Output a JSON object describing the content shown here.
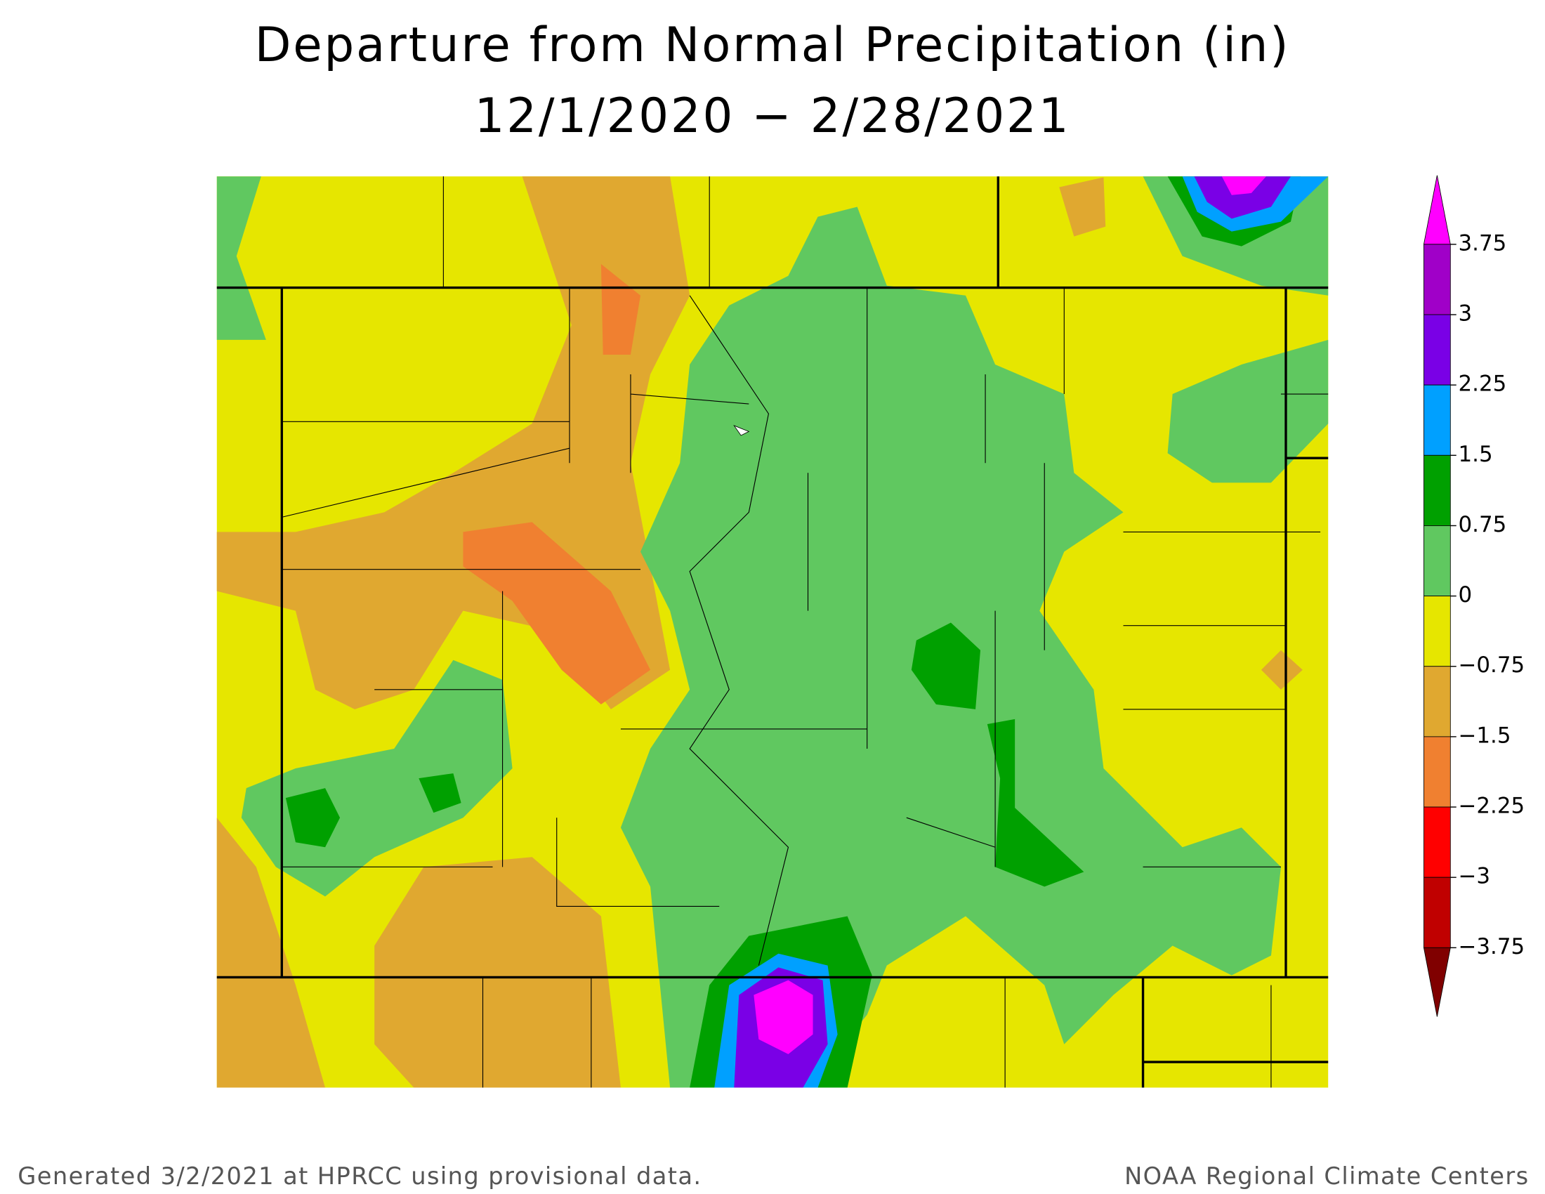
{
  "header": {
    "title": "Departure from Normal Precipitation (in)",
    "subtitle": "12/1/2020 − 2/28/2021"
  },
  "legend": {
    "ticks": [
      3.75,
      3,
      2.25,
      1.5,
      0.75,
      0,
      {
        "value": -0.75,
        "label": "−0.75"
      },
      {
        "value": -1.5,
        "label": "−1.5"
      },
      {
        "value": -2.25,
        "label": "−2.25"
      },
      {
        "value": -3,
        "label": "−3"
      },
      {
        "value": -3.75,
        "label": "−3.75"
      }
    ],
    "colors": [
      "#ff00ff",
      "#a000c8",
      "#7a00e6",
      "#00a0ff",
      "#00a000",
      "#60c860",
      "#e6e600",
      "#e0a830",
      "#f08030",
      "#ff0000",
      "#c00000",
      "#800000"
    ]
  },
  "footer": {
    "left": "Generated 3/2/2021 at HPRCC using provisional data.",
    "right": "NOAA Regional Climate Centers"
  }
}
